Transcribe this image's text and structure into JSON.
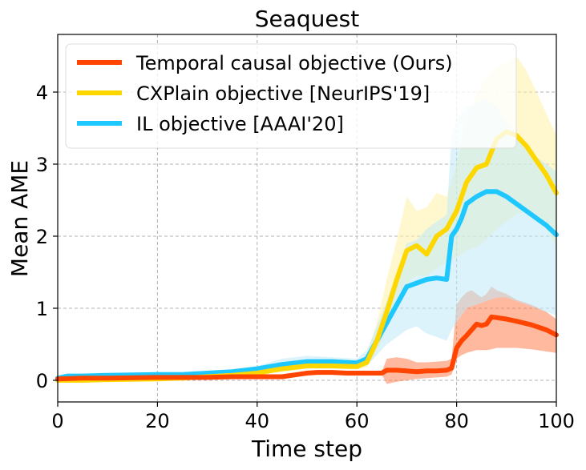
{
  "chart_data": {
    "type": "line",
    "title": "Seaquest",
    "xlabel": "Time step",
    "ylabel": "Mean AME",
    "xlim": [
      0,
      100
    ],
    "ylim": [
      -0.3,
      4.8
    ],
    "xticks": [
      0,
      20,
      40,
      60,
      80,
      100
    ],
    "yticks": [
      0,
      1,
      2,
      3,
      4
    ],
    "grid": true,
    "legend": "upper-left",
    "series": [
      {
        "name": "Temporal causal objective (Ours)",
        "color": "#ff4500",
        "band_color": "#ff7f50",
        "x": [
          0,
          5,
          10,
          20,
          30,
          35,
          40,
          45,
          48,
          50,
          52,
          55,
          58,
          60,
          62,
          65,
          66,
          68,
          70,
          72,
          74,
          76,
          78,
          79,
          80,
          81,
          82,
          83,
          84,
          85,
          86,
          87,
          88,
          90,
          92,
          95,
          98,
          100
        ],
        "y": [
          0.02,
          0.03,
          0.03,
          0.04,
          0.04,
          0.05,
          0.05,
          0.05,
          0.08,
          0.1,
          0.11,
          0.11,
          0.1,
          0.1,
          0.1,
          0.1,
          0.14,
          0.14,
          0.13,
          0.12,
          0.13,
          0.13,
          0.14,
          0.17,
          0.45,
          0.55,
          0.62,
          0.7,
          0.78,
          0.76,
          0.78,
          0.88,
          0.87,
          0.85,
          0.82,
          0.77,
          0.7,
          0.63
        ],
        "lower": [
          0.01,
          0.02,
          0.02,
          0.03,
          0.03,
          0.04,
          0.04,
          0.04,
          0.06,
          0.08,
          0.09,
          0.09,
          0.08,
          0.08,
          0.08,
          0.08,
          -0.05,
          -0.02,
          0.0,
          0.02,
          0.03,
          0.04,
          0.05,
          0.08,
          0.3,
          0.35,
          0.38,
          0.4,
          0.42,
          0.42,
          0.42,
          0.43,
          0.45,
          0.45,
          0.45,
          0.43,
          0.4,
          0.38
        ],
        "upper": [
          0.04,
          0.04,
          0.04,
          0.05,
          0.05,
          0.06,
          0.06,
          0.06,
          0.1,
          0.12,
          0.13,
          0.13,
          0.12,
          0.12,
          0.12,
          0.12,
          0.3,
          0.32,
          0.3,
          0.25,
          0.25,
          0.26,
          0.27,
          0.3,
          1.05,
          1.15,
          1.22,
          1.25,
          1.2,
          1.15,
          1.2,
          1.3,
          1.25,
          1.2,
          1.12,
          1.05,
          0.95,
          0.85
        ]
      },
      {
        "name": "CXPlain objective [NeurIPS'19]",
        "color": "#ffd700",
        "band_color": "#fff2a8",
        "x": [
          0,
          5,
          10,
          20,
          25,
          30,
          35,
          40,
          45,
          50,
          55,
          60,
          62,
          64,
          66,
          68,
          70,
          72,
          74,
          76,
          78,
          80,
          82,
          84,
          86,
          88,
          90,
          92,
          94,
          96,
          98,
          100
        ],
        "y": [
          0.0,
          0.0,
          0.01,
          0.02,
          0.03,
          0.05,
          0.07,
          0.1,
          0.16,
          0.2,
          0.2,
          0.19,
          0.25,
          0.55,
          0.95,
          1.4,
          1.8,
          1.87,
          1.75,
          2.0,
          2.1,
          2.35,
          2.75,
          2.95,
          3.0,
          3.35,
          3.45,
          3.4,
          3.25,
          3.05,
          2.85,
          2.6
        ],
        "lower": [
          0.0,
          0.0,
          0.0,
          0.01,
          0.02,
          0.04,
          0.05,
          0.08,
          0.12,
          0.16,
          0.16,
          0.15,
          0.18,
          0.4,
          0.7,
          1.05,
          1.35,
          1.45,
          1.45,
          1.55,
          1.65,
          1.7,
          1.8,
          1.85,
          1.95,
          2.1,
          2.2,
          2.3,
          2.35,
          2.3,
          2.1,
          1.85
        ],
        "upper": [
          0.01,
          0.01,
          0.02,
          0.03,
          0.04,
          0.06,
          0.09,
          0.13,
          0.2,
          0.25,
          0.25,
          0.24,
          0.35,
          0.8,
          1.4,
          1.95,
          2.55,
          2.35,
          2.4,
          2.6,
          2.55,
          3.0,
          3.6,
          4.0,
          4.2,
          4.35,
          4.4,
          4.5,
          4.3,
          4.0,
          3.7,
          3.4
        ]
      },
      {
        "name": "IL objective [AAAI'20]",
        "color": "#1ec8ff",
        "band_color": "#bfe9f7",
        "x": [
          0,
          2,
          5,
          10,
          20,
          25,
          30,
          35,
          40,
          45,
          50,
          55,
          60,
          62,
          64,
          66,
          68,
          70,
          72,
          74,
          76,
          78,
          79,
          80,
          81,
          82,
          84,
          86,
          88,
          90,
          92,
          94,
          96,
          98,
          100
        ],
        "y": [
          0.03,
          0.06,
          0.06,
          0.07,
          0.08,
          0.08,
          0.1,
          0.12,
          0.16,
          0.22,
          0.26,
          0.26,
          0.24,
          0.3,
          0.55,
          0.8,
          1.05,
          1.3,
          1.35,
          1.4,
          1.42,
          1.4,
          2.0,
          2.1,
          2.25,
          2.45,
          2.55,
          2.62,
          2.62,
          2.55,
          2.45,
          2.35,
          2.25,
          2.15,
          2.02
        ],
        "lower": [
          0.02,
          0.05,
          0.05,
          0.06,
          0.07,
          0.07,
          0.09,
          0.1,
          0.13,
          0.17,
          0.21,
          0.21,
          0.2,
          0.2,
          0.35,
          0.5,
          0.6,
          0.7,
          0.75,
          0.65,
          0.6,
          0.55,
          0.7,
          0.8,
          0.9,
          1.0,
          1.05,
          1.1,
          1.15,
          1.15,
          1.1,
          1.05,
          1.0,
          0.95,
          0.9
        ],
        "upper": [
          0.04,
          0.07,
          0.07,
          0.08,
          0.09,
          0.09,
          0.12,
          0.15,
          0.2,
          0.3,
          0.34,
          0.32,
          0.3,
          0.42,
          0.75,
          1.1,
          1.5,
          1.9,
          1.95,
          2.1,
          2.2,
          2.3,
          3.4,
          3.6,
          3.7,
          3.8,
          3.85,
          3.9,
          3.8,
          3.6,
          3.4,
          3.25,
          3.1,
          3.0,
          2.9
        ]
      }
    ]
  }
}
